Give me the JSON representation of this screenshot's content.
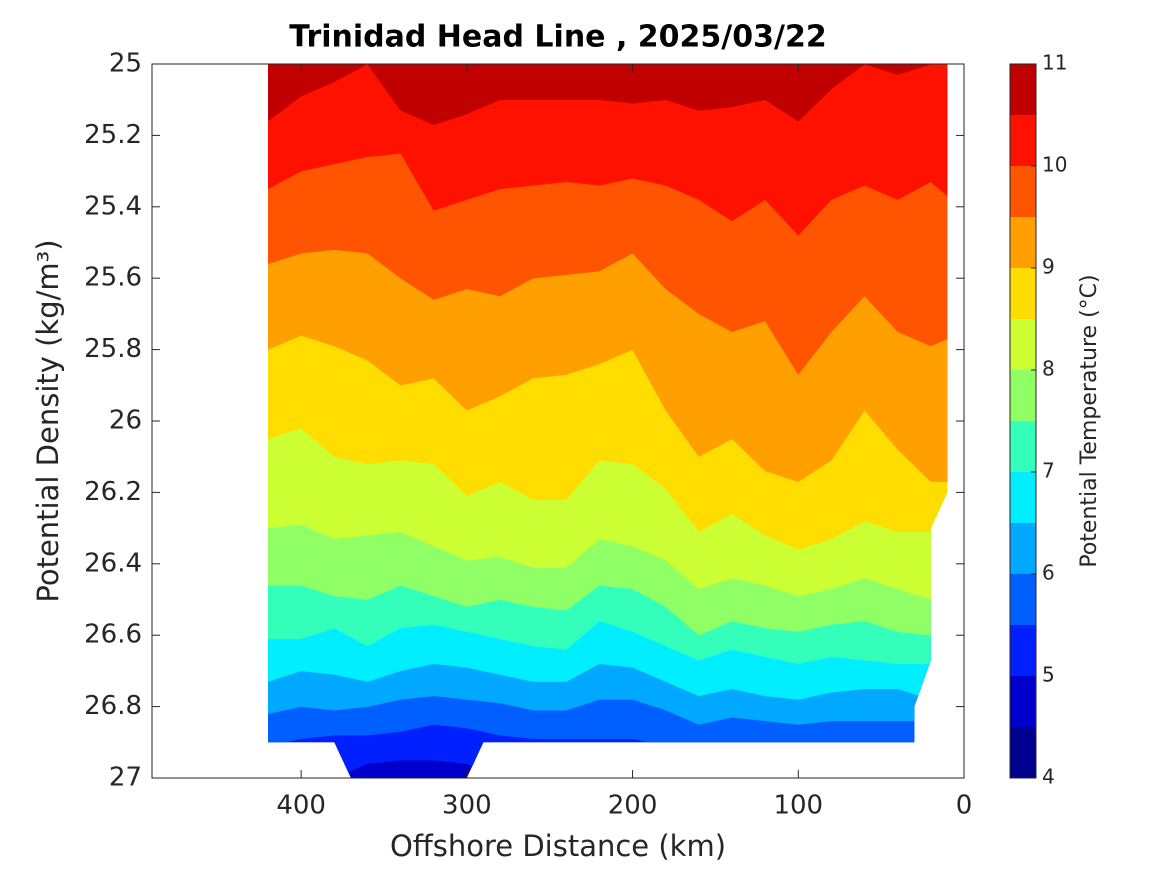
{
  "chart_data": {
    "type": "contourf",
    "title": "Trinidad Head Line , 2025/03/22",
    "xlabel": "Offshore Distance (km)",
    "ylabel": "Potential Density (kg/m³)",
    "colorbar_label": "Potential Temperature (°C)",
    "xlim": [
      490,
      0
    ],
    "xticks": [
      400,
      300,
      200,
      100,
      0
    ],
    "ylim": [
      25,
      27
    ],
    "y_inverted": true,
    "yticks": [
      25,
      25.2,
      25.4,
      25.6,
      25.8,
      26,
      26.2,
      26.4,
      26.6,
      26.8,
      27
    ],
    "clim": [
      4,
      11
    ],
    "cticks": [
      4,
      5,
      6,
      7,
      8,
      9,
      10,
      11
    ],
    "levels": [
      4,
      4.5,
      5,
      5.5,
      6,
      6.5,
      7,
      7.5,
      8,
      8.5,
      9,
      9.5,
      10,
      10.5,
      11
    ],
    "colors": [
      "#00008f",
      "#0000cc",
      "#0020ff",
      "#0060ff",
      "#00a8ff",
      "#00eeff",
      "#33ffbb",
      "#90ff66",
      "#ccff33",
      "#ffdd00",
      "#ffa000",
      "#ff5500",
      "#ff1100",
      "#c00000"
    ],
    "domain": {
      "x": [
        420,
        10,
        10,
        20,
        20,
        30,
        30,
        290,
        300,
        370,
        380,
        420
      ],
      "values": [
        25,
        25,
        26.2,
        26.3,
        26.67,
        26.8,
        26.9,
        26.9,
        27,
        27,
        26.9,
        26.9
      ]
    },
    "x": [
      420,
      400,
      380,
      360,
      340,
      320,
      300,
      280,
      260,
      240,
      220,
      200,
      180,
      160,
      140,
      120,
      100,
      80,
      60,
      40,
      20,
      10
    ],
    "series": [
      {
        "level": 5,
        "values": [
          27,
          27,
          27,
          26.96,
          26.95,
          26.95,
          26.96,
          27,
          27,
          27,
          27,
          27,
          27,
          27,
          27,
          27,
          27,
          27,
          27,
          27,
          27,
          27
        ]
      },
      {
        "level": 5.5,
        "values": [
          26.91,
          26.89,
          26.88,
          26.88,
          26.87,
          26.85,
          26.86,
          26.88,
          26.89,
          26.89,
          26.89,
          26.89,
          26.91,
          26.91,
          26.91,
          26.91,
          26.91,
          26.91,
          26.91,
          26.91,
          26.91,
          26.91
        ]
      },
      {
        "level": 6,
        "values": [
          26.82,
          26.8,
          26.81,
          26.8,
          26.78,
          26.77,
          26.78,
          26.79,
          26.81,
          26.81,
          26.78,
          26.78,
          26.81,
          26.85,
          26.83,
          26.84,
          26.85,
          26.84,
          26.84,
          26.84,
          26.84,
          26.84
        ]
      },
      {
        "level": 6.5,
        "values": [
          26.73,
          26.7,
          26.71,
          26.73,
          26.7,
          26.68,
          26.69,
          26.71,
          26.73,
          26.73,
          26.68,
          26.69,
          26.73,
          26.77,
          26.75,
          26.77,
          26.78,
          26.76,
          26.75,
          26.75,
          26.78,
          26.78
        ]
      },
      {
        "level": 7,
        "values": [
          26.61,
          26.61,
          26.58,
          26.63,
          26.58,
          26.57,
          26.59,
          26.61,
          26.63,
          26.64,
          26.56,
          26.59,
          26.63,
          26.67,
          26.64,
          26.66,
          26.68,
          26.66,
          26.67,
          26.68,
          26.68,
          26.68
        ]
      },
      {
        "level": 7.5,
        "values": [
          26.46,
          26.46,
          26.49,
          26.5,
          26.46,
          26.49,
          26.52,
          26.5,
          26.52,
          26.53,
          26.46,
          26.47,
          26.52,
          26.6,
          26.56,
          26.58,
          26.59,
          26.57,
          26.56,
          26.59,
          26.6,
          26.6
        ]
      },
      {
        "level": 8,
        "values": [
          26.3,
          26.29,
          26.33,
          26.32,
          26.31,
          26.35,
          26.39,
          26.38,
          26.41,
          26.41,
          26.33,
          26.35,
          26.39,
          26.47,
          26.44,
          26.46,
          26.49,
          26.47,
          26.44,
          26.47,
          26.5,
          26.5
        ]
      },
      {
        "level": 8.5,
        "values": [
          26.05,
          26.02,
          26.1,
          26.12,
          26.11,
          26.12,
          26.21,
          26.17,
          26.22,
          26.22,
          26.11,
          26.12,
          26.19,
          26.31,
          26.26,
          26.32,
          26.36,
          26.33,
          26.28,
          26.31,
          26.31,
          26.31
        ]
      },
      {
        "level": 9,
        "values": [
          25.8,
          25.76,
          25.79,
          25.83,
          25.9,
          25.88,
          25.97,
          25.93,
          25.88,
          25.87,
          25.84,
          25.8,
          25.97,
          26.1,
          26.05,
          26.14,
          26.17,
          26.11,
          25.97,
          26.08,
          26.17,
          26.17
        ]
      },
      {
        "level": 9.5,
        "values": [
          25.56,
          25.53,
          25.52,
          25.53,
          25.6,
          25.66,
          25.63,
          25.65,
          25.6,
          25.59,
          25.58,
          25.53,
          25.63,
          25.7,
          25.75,
          25.72,
          25.87,
          25.75,
          25.65,
          25.75,
          25.79,
          25.77
        ]
      },
      {
        "level": 10,
        "values": [
          25.35,
          25.3,
          25.28,
          25.26,
          25.25,
          25.41,
          25.38,
          25.35,
          25.34,
          25.33,
          25.34,
          25.32,
          25.34,
          25.38,
          25.44,
          25.38,
          25.48,
          25.38,
          25.34,
          25.38,
          25.33,
          25.37
        ]
      },
      {
        "level": 10.5,
        "values": [
          25.16,
          25.09,
          25.05,
          25,
          25.13,
          25.17,
          25.14,
          25.1,
          25.1,
          25.1,
          25.1,
          25.11,
          25.1,
          25.13,
          25.12,
          25.1,
          25.16,
          25.07,
          25,
          25.03,
          25,
          25
        ]
      }
    ]
  }
}
